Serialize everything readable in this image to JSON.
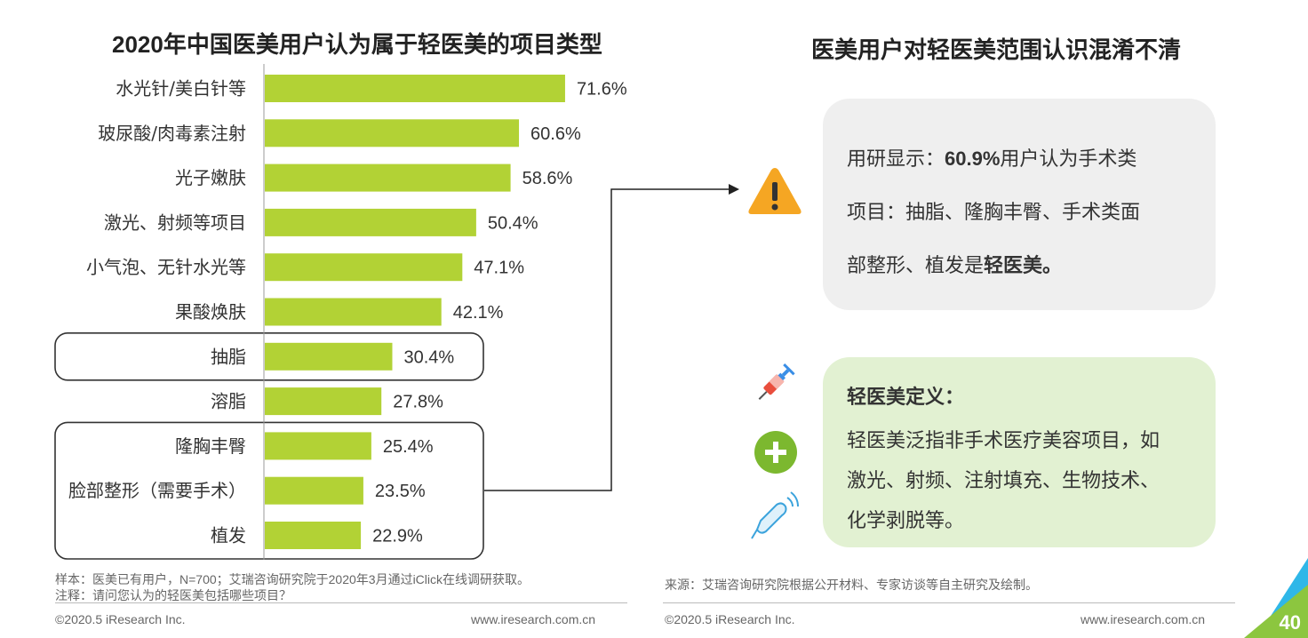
{
  "left_title": "2020年中国医美用户认为属于轻医美的项目类型",
  "right_title": "医美用户对轻医美范围认识混淆不清",
  "chart_data": {
    "type": "bar",
    "orientation": "horizontal",
    "title": "2020年中国医美用户认为属于轻医美的项目类型",
    "categories": [
      "水光针/美白针等",
      "玻尿酸/肉毒素注射",
      "光子嫩肤",
      "激光、射频等项目",
      "小气泡、无针水光等",
      "果酸焕肤",
      "抽脂",
      "溶脂",
      "隆胸丰臀",
      "脸部整形（需要手术）",
      "植发"
    ],
    "values": [
      71.6,
      60.6,
      58.6,
      50.4,
      47.1,
      42.1,
      30.4,
      27.8,
      25.4,
      23.5,
      22.9
    ],
    "value_labels": [
      "71.6%",
      "60.6%",
      "58.6%",
      "50.4%",
      "47.1%",
      "42.1%",
      "30.4%",
      "27.8%",
      "25.4%",
      "23.5%",
      "22.9%"
    ],
    "unit": "%",
    "bar_color": "#b2d235",
    "highlighted_groups": [
      [
        "抽脂"
      ],
      [
        "隆胸丰臀",
        "脸部整形（需要手术）",
        "植发"
      ]
    ],
    "grid": false,
    "legend": "none"
  },
  "info_box_top": {
    "line1_prefix": "用研显示：",
    "line1_highlight": "60.9%",
    "line1_suffix": "用户认为手术类",
    "line2": "项目：抽脂、隆胸丰臀、手术类面",
    "line3_prefix": "部整形、植发是",
    "line3_highlight": "轻医美。",
    "icon": "warning-triangle-icon"
  },
  "info_box_bottom": {
    "heading": "轻医美定义：",
    "line1": "轻医美泛指非手术医疗美容项目，如",
    "line2": "激光、射频、注射填充、生物技术、",
    "line3": "化学剥脱等。",
    "icons": [
      "syringe-icon",
      "plus-circle-icon",
      "ultrasound-probe-icon"
    ]
  },
  "notes_left": {
    "sample": "样本：医美已有用户，N=700；艾瑞咨询研究院于2020年3月通过iClick在线调研获取。",
    "note": "注释：请问您认为的轻医美包括哪些项目？"
  },
  "notes_right": {
    "source": "来源：艾瑞咨询研究院根据公开材料、专家访谈等自主研究及绘制。"
  },
  "footer": {
    "copyright_left": "©2020.5 iResearch Inc.",
    "url_left": "www.iresearch.com.cn",
    "copyright_right": "©2020.5 iResearch Inc.",
    "url_right": "www.iresearch.com.cn",
    "page_number": "40"
  },
  "colors": {
    "bar": "#b2d235",
    "warning": "#f5a623",
    "plus": "#7cb82f",
    "panel_top": "#efefef",
    "panel_bottom": "#e2f1d2",
    "corner_blue": "#2fb7e8",
    "corner_green": "#8cc63f"
  }
}
